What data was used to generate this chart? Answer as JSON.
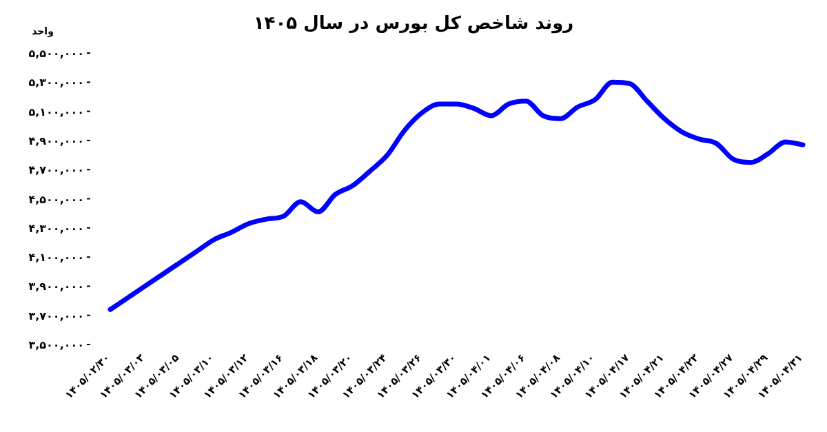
{
  "chart_data": {
    "type": "line",
    "title": "روند شاخص کل بورس در سال ۱۴۰۵",
    "ylabel": "واحد",
    "categories": [
      "۱۴۰۵/۰۲/۳۰",
      null,
      "۱۴۰۵/۰۳/۰۳",
      null,
      "۱۴۰۵/۰۳/۰۵",
      null,
      "۱۴۰۵/۰۳/۱۰",
      null,
      "۱۴۰۵/۰۳/۱۲",
      null,
      "۱۴۰۵/۰۳/۱۶",
      null,
      "۱۴۰۵/۰۳/۱۸",
      null,
      "۱۴۰۵/۰۳/۲۰",
      null,
      "۱۴۰۵/۰۳/۲۴",
      null,
      "۱۴۰۵/۰۳/۲۶",
      null,
      "۱۴۰۵/۰۳/۳۰",
      null,
      "۱۴۰۵/۰۴/۰۱",
      null,
      "۱۴۰۵/۰۴/۰۶",
      null,
      "۱۴۰۵/۰۴/۰۸",
      null,
      "۱۴۰۵/۰۴/۱۰",
      null,
      "۱۴۰۵/۰۴/۱۷",
      null,
      "۱۴۰۵/۰۴/۲۱",
      null,
      "۱۴۰۵/۰۴/۲۳",
      null,
      "۱۴۰۵/۰۴/۲۷",
      null,
      "۱۴۰۵/۰۴/۲۹",
      null,
      "۱۴۰۵/۰۴/۳۱"
    ],
    "series": [
      {
        "color": "#0000ff",
        "values": [
          3740000,
          3820000,
          3900000,
          3980000,
          4060000,
          4140000,
          4220000,
          4270000,
          4330000,
          4360000,
          4380000,
          4480000,
          4410000,
          4530000,
          4590000,
          4690000,
          4800000,
          4970000,
          5090000,
          5150000,
          5150000,
          5120000,
          5070000,
          5150000,
          5170000,
          5070000,
          5050000,
          5130000,
          5180000,
          5300000,
          5290000,
          5170000,
          5050000,
          4960000,
          4910000,
          4880000,
          4770000,
          4750000,
          4810000,
          4890000,
          4870000
        ]
      }
    ],
    "ylim": [
      3500000,
      5500000
    ],
    "yticks": [
      {
        "value": 3500000,
        "label": "۳,۵۰۰,۰۰۰"
      },
      {
        "value": 3700000,
        "label": "۳,۷۰۰,۰۰۰"
      },
      {
        "value": 3900000,
        "label": "۳,۹۰۰,۰۰۰"
      },
      {
        "value": 4100000,
        "label": "۴,۱۰۰,۰۰۰"
      },
      {
        "value": 4300000,
        "label": "۴,۳۰۰,۰۰۰"
      },
      {
        "value": 4500000,
        "label": "۴,۵۰۰,۰۰۰"
      },
      {
        "value": 4700000,
        "label": "۴,۷۰۰,۰۰۰"
      },
      {
        "value": 4900000,
        "label": "۴,۹۰۰,۰۰۰"
      },
      {
        "value": 5100000,
        "label": "۵,۱۰۰,۰۰۰"
      },
      {
        "value": 5300000,
        "label": "۵,۳۰۰,۰۰۰"
      },
      {
        "value": 5500000,
        "label": "۵,۵۰۰,۰۰۰"
      }
    ]
  }
}
